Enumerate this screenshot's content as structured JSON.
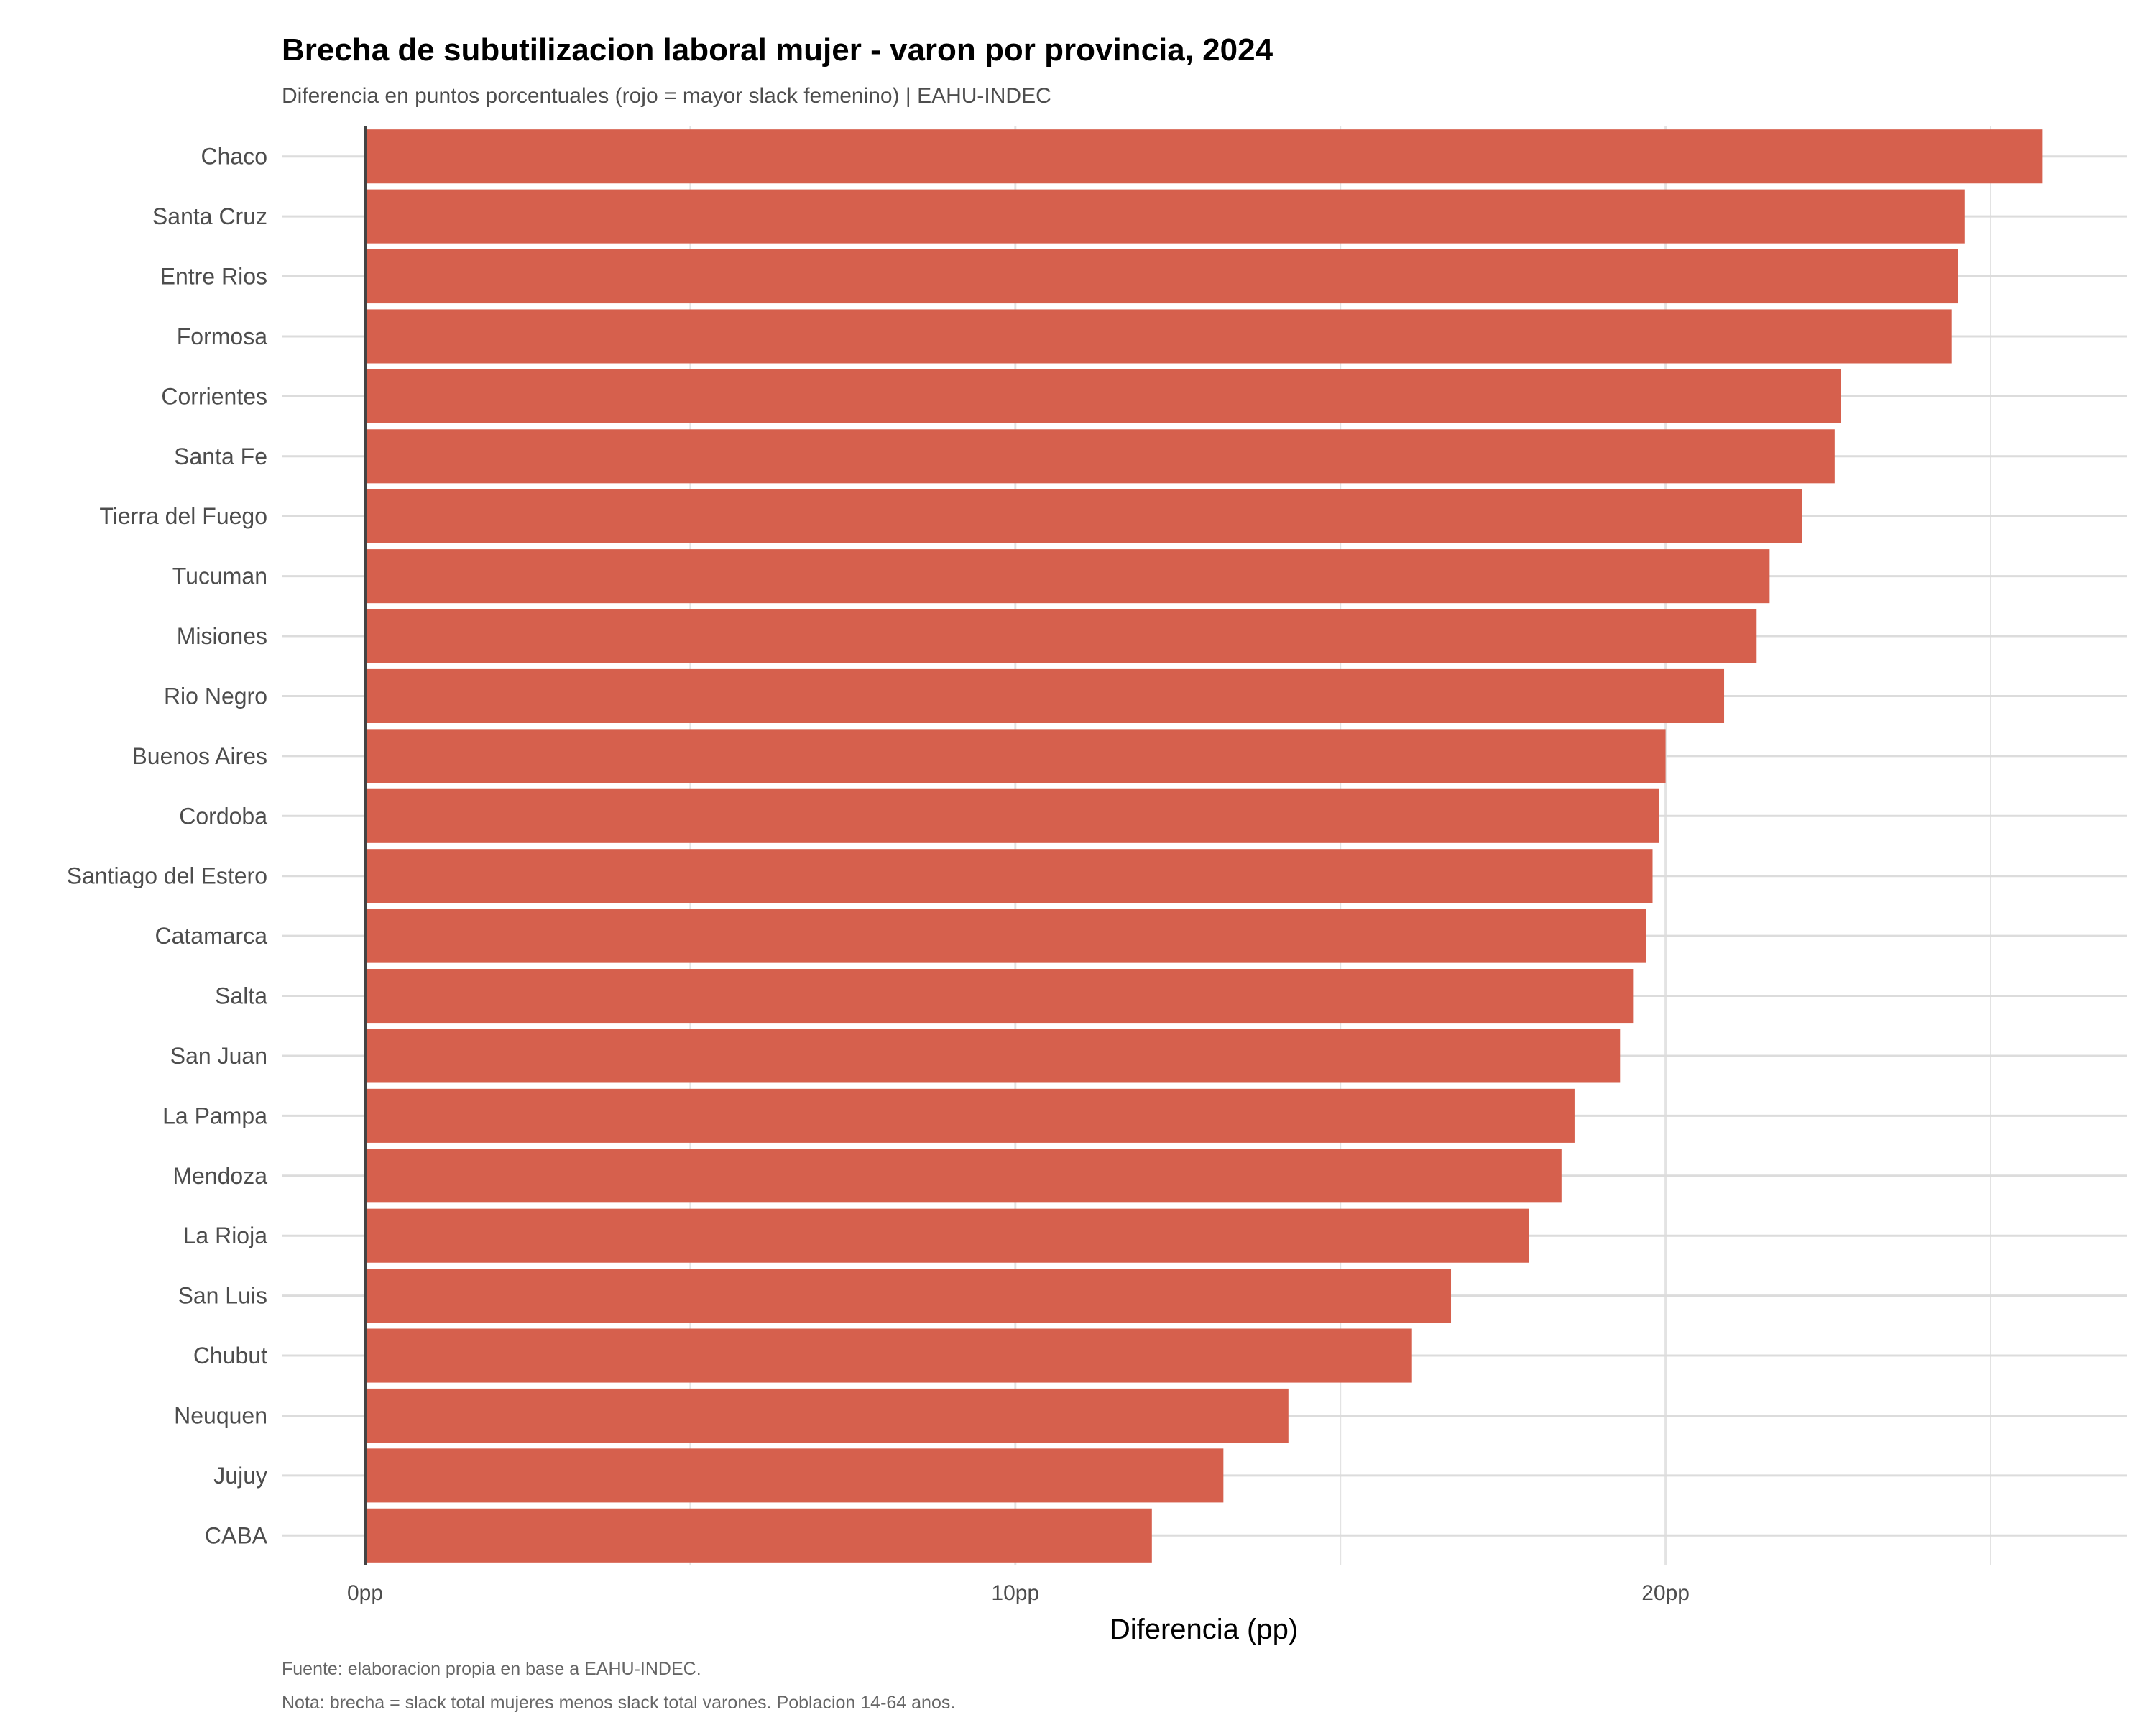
{
  "chart_data": {
    "type": "bar",
    "orientation": "horizontal",
    "title": "Brecha de subutilizacion laboral mujer - varon por provincia, 2024",
    "subtitle": "Diferencia en puntos porcentuales (rojo = mayor slack femenino) | EAHU-INDEC",
    "xlabel": "Diferencia (pp)",
    "ylabel": "",
    "xlim": [
      0,
      27.1
    ],
    "xticks": [
      {
        "value": 0,
        "label": "0pp"
      },
      {
        "value": 10,
        "label": "10pp"
      },
      {
        "value": 20,
        "label": "20pp"
      }
    ],
    "grid": true,
    "bar_color": "#d6604d",
    "categories": [
      "Chaco",
      "Santa Cruz",
      "Entre Rios",
      "Formosa",
      "Corrientes",
      "Santa Fe",
      "Tierra del Fuego",
      "Tucuman",
      "Misiones",
      "Rio Negro",
      "Buenos Aires",
      "Cordoba",
      "Santiago del Estero",
      "Catamarca",
      "Salta",
      "San Juan",
      "La Pampa",
      "Mendoza",
      "La Rioja",
      "San Luis",
      "Chubut",
      "Neuquen",
      "Jujuy",
      "CABA"
    ],
    "values": [
      25.8,
      24.6,
      24.5,
      24.4,
      22.7,
      22.6,
      22.1,
      21.6,
      21.4,
      20.9,
      20.0,
      19.9,
      19.8,
      19.7,
      19.5,
      19.3,
      18.6,
      18.4,
      17.9,
      16.7,
      16.1,
      14.2,
      13.2,
      12.1
    ],
    "caption": [
      "Fuente: elaboracion propia en base a EAHU-INDEC.",
      "Nota: brecha = slack total mujeres menos slack total varones. Poblacion 14-64 anos."
    ]
  }
}
